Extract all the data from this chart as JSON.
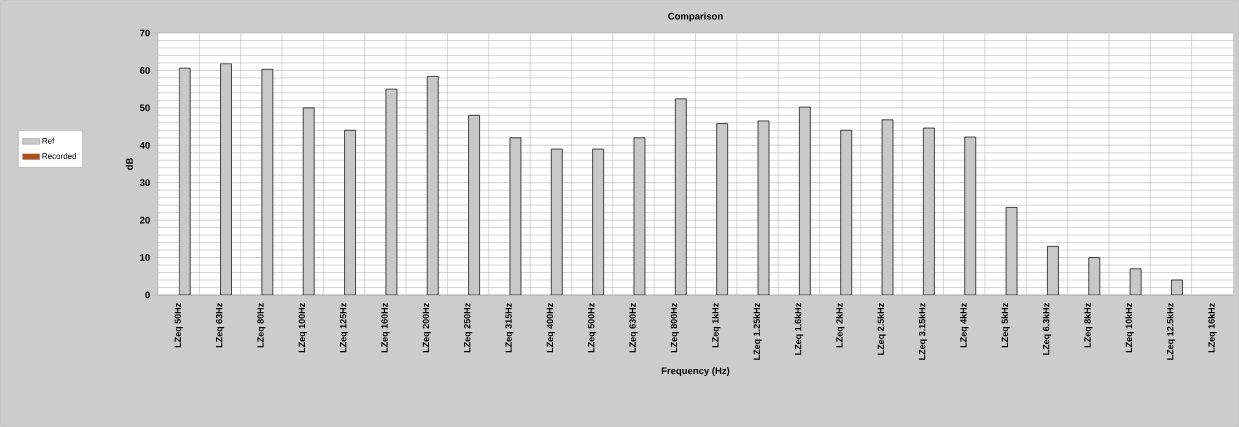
{
  "chart_data": {
    "type": "bar",
    "title": "Comparison",
    "xlabel": "Frequency (Hz)",
    "ylabel": "dB",
    "categories": [
      "LZeq 50Hz",
      "LZeq 63Hz",
      "LZeq 80Hz",
      "LZeq 100Hz",
      "LZeq 125Hz",
      "LZeq 160Hz",
      "LZeq 200Hz",
      "LZeq 250Hz",
      "LZeq 315Hz",
      "LZeq 400Hz",
      "LZeq 500Hz",
      "LZeq 630Hz",
      "LZeq 800Hz",
      "LZeq 1kHz",
      "LZeq 1.25kHz",
      "LZeq 1.6kHz",
      "LZeq 2kHz",
      "LZeq 2.5kHz",
      "LZeq 3.15kHz",
      "LZeq 4kHz",
      "LZeq 5kHz",
      "LZeq 6.3kHz",
      "LZeq 8kHz",
      "LZeq 10kHz",
      "LZeq 12.5kHz",
      "LZeq 16kHz"
    ],
    "series": [
      {
        "name": "Ref",
        "color": "#c8c8c8",
        "values": [
          60.6,
          61.8,
          60.3,
          50,
          44,
          55,
          58.4,
          48,
          42,
          39,
          39,
          42,
          52.4,
          45.8,
          46.5,
          50.2,
          44,
          46.8,
          44.6,
          42.2,
          23.4,
          13,
          10,
          7,
          4,
          null
        ]
      },
      {
        "name": "Recorded",
        "color": "#b84a1a",
        "values": [
          null,
          null,
          null,
          null,
          null,
          null,
          null,
          null,
          null,
          null,
          null,
          null,
          null,
          null,
          null,
          null,
          null,
          null,
          null,
          null,
          null,
          null,
          null,
          null,
          null,
          null
        ]
      }
    ],
    "ylim": [
      0,
      70
    ],
    "yticks": [
      0,
      10,
      20,
      30,
      40,
      50,
      60,
      70
    ],
    "grid": true,
    "legend": "left"
  }
}
